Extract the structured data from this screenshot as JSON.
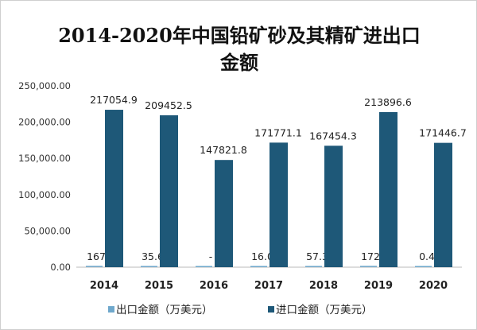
{
  "chart_data": {
    "type": "bar",
    "title": "2014-2020年中国铅矿砂及其精矿进出口金额",
    "title_line1": "2014-2020年中国铅矿砂及其精矿进出口",
    "title_line2": "金额",
    "categories": [
      "2014",
      "2015",
      "2016",
      "2017",
      "2018",
      "2019",
      "2020"
    ],
    "series": [
      {
        "name": "出口金额（万美元）",
        "values": [
          167.9,
          35.67,
          null,
          16.08,
          57.34,
          172.1,
          0.47
        ],
        "labels": [
          "167.9",
          "35.67",
          "-",
          "16.08",
          "57.34",
          "172.1",
          "0.47"
        ],
        "color": "#6fa8cc"
      },
      {
        "name": "进口金额（万美元）",
        "values": [
          217054.9,
          209452.5,
          147821.8,
          171771.1,
          167454.3,
          213896.6,
          171446.7
        ],
        "labels": [
          "217054.9",
          "209452.5",
          "147821.8",
          "171771.1",
          "167454.3",
          "213896.6",
          "171446.7"
        ],
        "color": "#1e5878"
      }
    ],
    "yticks": [
      "0.00",
      "50,000.00",
      "100,000.00",
      "150,000.00",
      "200,000.00",
      "250,000.00"
    ],
    "ylim": [
      0,
      250000
    ],
    "grid": false,
    "legend_position": "bottom"
  }
}
